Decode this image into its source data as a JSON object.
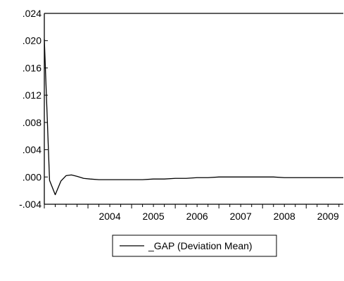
{
  "chart_data": {
    "type": "line",
    "title": "",
    "xlabel": "",
    "ylabel": "",
    "xlim": [
      2003.0,
      2009.85
    ],
    "ylim": [
      -0.004,
      0.024
    ],
    "y_ticks": [
      -0.004,
      0.0,
      0.004,
      0.008,
      0.012,
      0.016,
      0.02,
      0.024
    ],
    "y_tick_labels": [
      "-.004",
      ".000",
      ".004",
      ".008",
      ".012",
      ".016",
      ".020",
      ".024"
    ],
    "x_ticks": [
      2004,
      2005,
      2006,
      2007,
      2008,
      2009
    ],
    "x_tick_labels": [
      "2004",
      "2005",
      "2006",
      "2007",
      "2008",
      "2009"
    ],
    "grid": false,
    "legend_position": "bottom-center",
    "color": "#000000",
    "series": [
      {
        "name": "_GAP (Deviation Mean)",
        "x": [
          2003.0,
          2003.12,
          2003.25,
          2003.38,
          2003.5,
          2003.62,
          2003.75,
          2003.9,
          2004.05,
          2004.25,
          2004.5,
          2004.75,
          2005.0,
          2005.25,
          2005.5,
          2005.75,
          2006.0,
          2006.25,
          2006.5,
          2006.75,
          2007.0,
          2007.25,
          2007.5,
          2007.75,
          2008.0,
          2008.25,
          2008.5,
          2008.75,
          2009.0,
          2009.25,
          2009.5,
          2009.85
        ],
        "values": [
          0.0202,
          -0.0005,
          -0.0026,
          -0.0006,
          0.0002,
          0.0003,
          0.0001,
          -0.0002,
          -0.0003,
          -0.0004,
          -0.0004,
          -0.0004,
          -0.0004,
          -0.0004,
          -0.0003,
          -0.0003,
          -0.0002,
          -0.0002,
          -0.0001,
          -0.0001,
          0.0,
          0.0,
          0.0,
          0.0,
          0.0,
          0.0,
          -0.0001,
          -0.0001,
          -0.0001,
          -0.0001,
          -0.0001,
          -0.0001
        ]
      }
    ]
  }
}
